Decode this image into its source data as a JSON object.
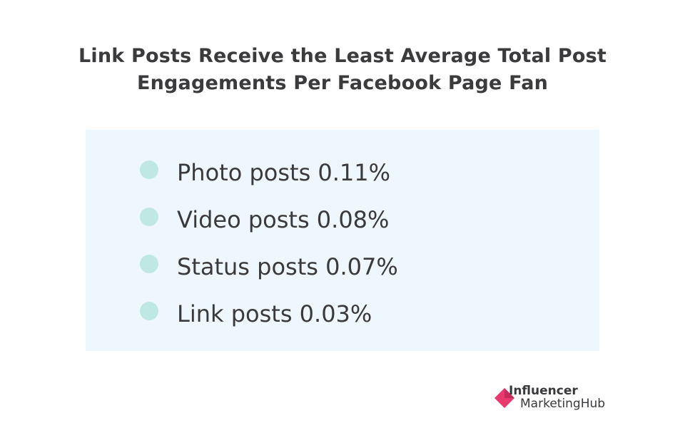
{
  "title": {
    "line1": "Link Posts Receive the Least Average Total Post",
    "line2": "Engagements Per Facebook Page Fan"
  },
  "items": [
    {
      "label": "Photo posts 0.11%"
    },
    {
      "label": "Video posts 0.08%"
    },
    {
      "label": "Status posts 0.07%"
    },
    {
      "label": "Link posts 0.03%"
    }
  ],
  "logo": {
    "line1": "Influencer",
    "line2": "MarketingHub",
    "icon": "influencer-marketing-hub-logo-icon",
    "brand_color": "#e83a6f"
  },
  "colors": {
    "panel_bg": "#eef7fd",
    "bullet": "#bfe8e2",
    "text": "#3a3a3c"
  }
}
